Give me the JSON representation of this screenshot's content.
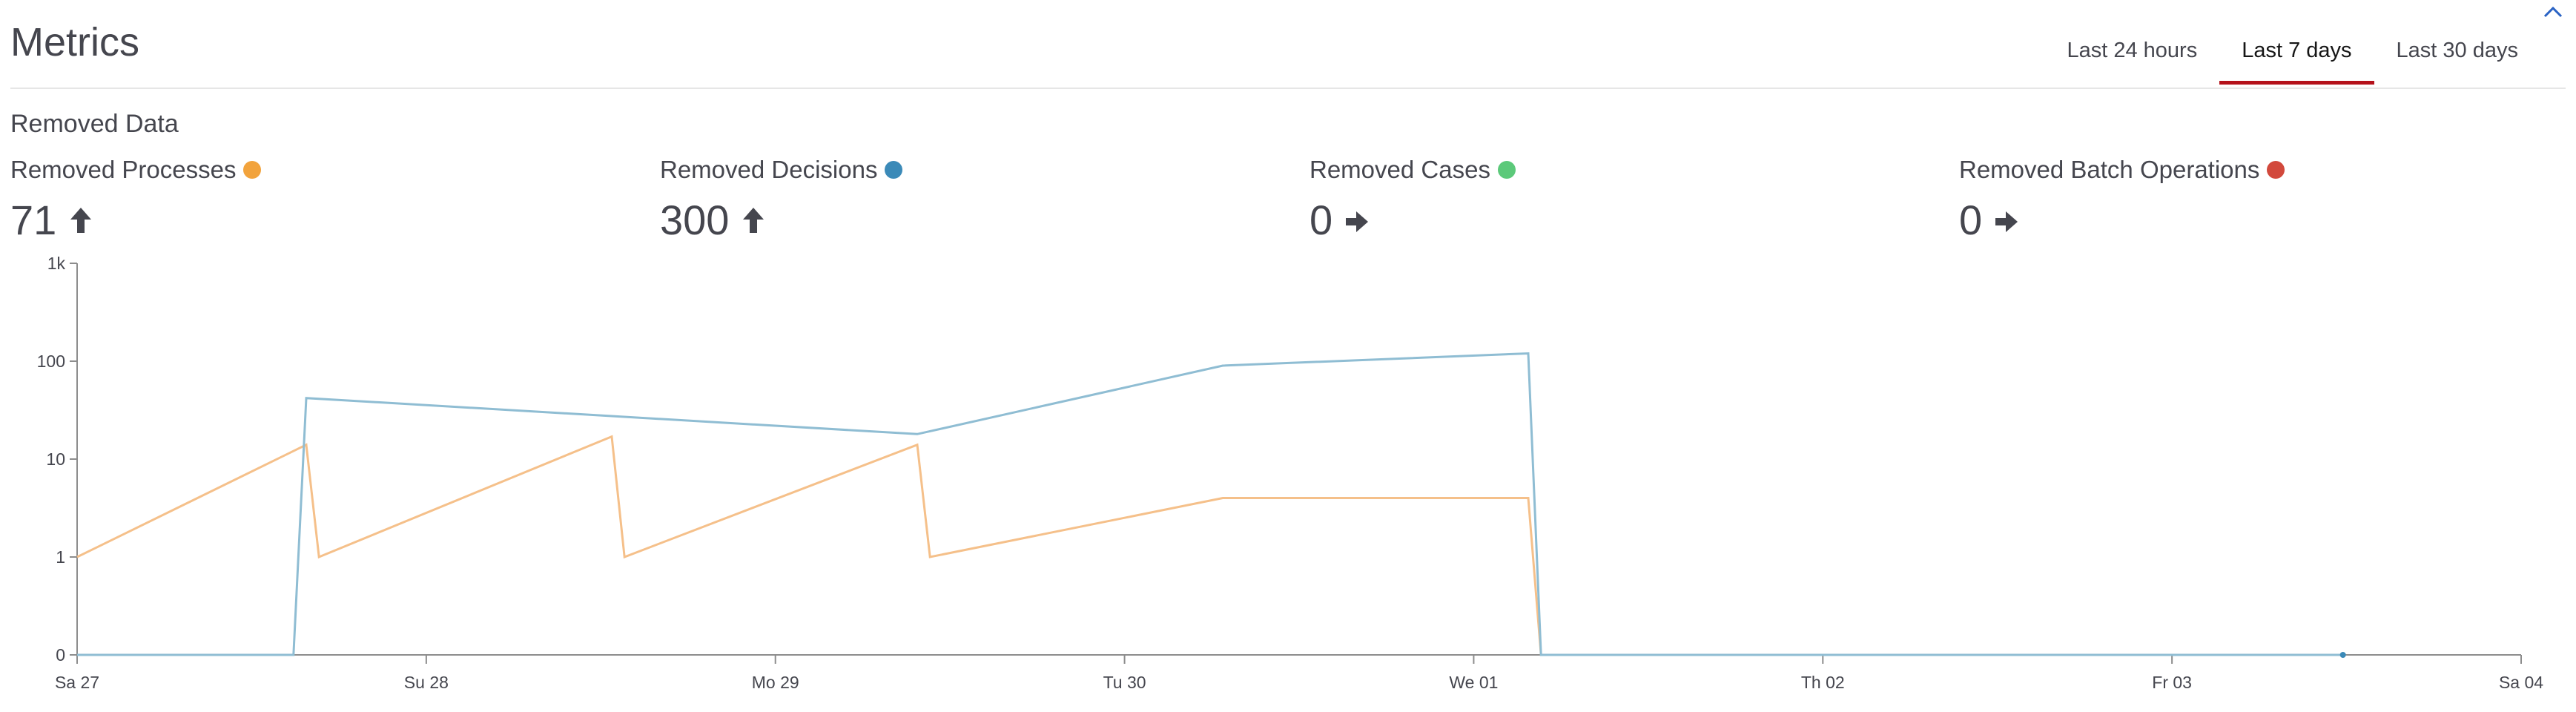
{
  "page": {
    "title": "Metrics",
    "tabs": [
      {
        "label": "Last 24 hours",
        "active": false
      },
      {
        "label": "Last 7 days",
        "active": true
      },
      {
        "label": "Last 30 days",
        "active": false
      }
    ],
    "accent_color": "#b5121b"
  },
  "section": {
    "title": "Removed Data"
  },
  "metrics": [
    {
      "label": "Removed Processes",
      "value": "71",
      "trend": "up",
      "color": "#f2a33c"
    },
    {
      "label": "Removed Decisions",
      "value": "300",
      "trend": "up",
      "color": "#3b8ab8"
    },
    {
      "label": "Removed Cases",
      "value": "0",
      "trend": "flat",
      "color": "#5cc97a"
    },
    {
      "label": "Removed Batch Operations",
      "value": "0",
      "trend": "flat",
      "color": "#d2493c"
    }
  ],
  "chart_data": {
    "type": "line",
    "y_scale": "log",
    "y_ticks": [
      "0",
      "1",
      "10",
      "100",
      "1k"
    ],
    "x_ticks": [
      "Sa 27",
      "Su 28",
      "Mo 29",
      "Tu 30",
      "We 01",
      "Th 02",
      "Fr 03",
      "Sa 04"
    ],
    "series": [
      {
        "color": "#f5c08a",
        "points": [
          [
            "2023-05-27T00:00",
            1
          ],
          [
            "2023-05-27T18:00",
            14
          ],
          [
            "2023-05-27T19:00",
            1
          ],
          [
            "2023-05-28T18:00",
            17
          ],
          [
            "2023-05-28T19:00",
            1
          ],
          [
            "2023-05-29T18:00",
            14
          ],
          [
            "2023-05-29T19:00",
            1
          ],
          [
            "2023-05-30T18:00",
            4
          ],
          [
            "2023-05-31T18:00",
            4
          ],
          [
            "2023-05-31T19:00",
            0
          ],
          [
            "2023-06-03T10:00",
            0
          ]
        ]
      },
      {
        "color": "#8fbdd3",
        "points": [
          [
            "2023-05-27T00:00",
            0
          ],
          [
            "2023-05-27T17:00",
            0
          ],
          [
            "2023-05-27T18:00",
            42
          ],
          [
            "2023-05-29T18:00",
            18
          ],
          [
            "2023-05-30T18:00",
            90
          ],
          [
            "2023-05-31T18:00",
            120
          ],
          [
            "2023-05-31T19:00",
            0
          ],
          [
            "2023-06-03T10:00",
            0
          ]
        ]
      }
    ],
    "x_range": [
      "2023-05-27T00:00",
      "2023-06-04T00:00"
    ]
  }
}
